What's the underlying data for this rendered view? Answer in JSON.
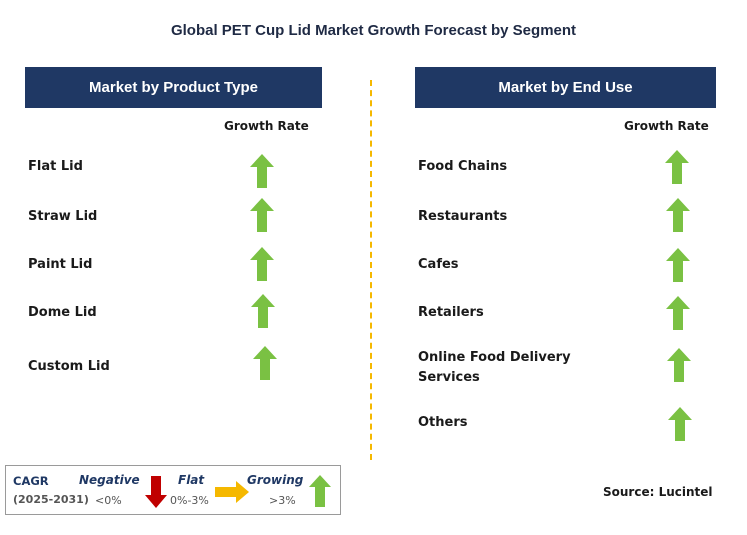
{
  "title": "Global PET Cup Lid Market Growth Forecast by Segment",
  "left_panel": {
    "header": "Market by Product Type",
    "growth_rate_label": "Growth Rate",
    "items": [
      {
        "label": "Flat Lid",
        "trend": "growing"
      },
      {
        "label": "Straw Lid",
        "trend": "growing"
      },
      {
        "label": "Paint Lid",
        "trend": "growing"
      },
      {
        "label": "Dome Lid",
        "trend": "growing"
      },
      {
        "label": "Custom Lid",
        "trend": "growing"
      }
    ]
  },
  "right_panel": {
    "header": "Market by End Use",
    "growth_rate_label": "Growth Rate",
    "items": [
      {
        "label": "Food Chains",
        "trend": "growing"
      },
      {
        "label": "Restaurants",
        "trend": "growing"
      },
      {
        "label": "Cafes",
        "trend": "growing"
      },
      {
        "label": "Retailers",
        "trend": "growing"
      },
      {
        "label_line1": "Online Food Delivery",
        "label_line2": "Services",
        "trend": "growing"
      },
      {
        "label": "Others",
        "trend": "growing"
      }
    ]
  },
  "legend": {
    "cagr": "CAGR",
    "years": "(2025-2031)",
    "negative": {
      "label": "Negative",
      "range": "<0%"
    },
    "flat": {
      "label": "Flat",
      "range": "0%-3%"
    },
    "growing": {
      "label": "Growing",
      "range": ">3%"
    }
  },
  "source": "Source: Lucintel",
  "colors": {
    "header_bg": "#1f3864",
    "up_arrow": "#7ac143",
    "down_arrow": "#c00000",
    "flat_arrow": "#f5b800",
    "divider": "#f5b800"
  }
}
